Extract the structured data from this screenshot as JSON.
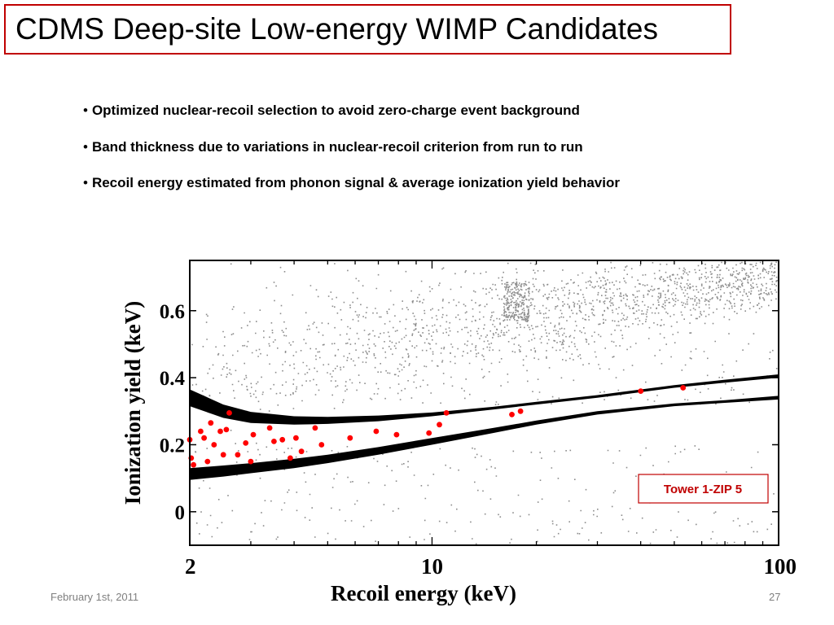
{
  "slide": {
    "title": "CDMS Deep-site Low-energy WIMP Candidates",
    "bullets": [
      "Optimized nuclear-recoil selection to avoid zero-charge event background",
      "Band thickness due to variations in nuclear-recoil criterion from run to run",
      "Recoil energy estimated from phonon signal & average ionization yield behavior"
    ],
    "footer_date": "February 1st, 2011",
    "page_number": "27"
  },
  "chart_data": {
    "type": "scatter",
    "title": "",
    "xlabel": "Recoil energy (keV)",
    "ylabel": "Ionization yield (keV)",
    "x_scale": "log",
    "xlim": [
      2,
      100
    ],
    "ylim": [
      -0.1,
      0.75
    ],
    "x_ticks": [
      2,
      10,
      100
    ],
    "x_tick_labels": [
      "2",
      "10",
      "100"
    ],
    "y_ticks": [
      0,
      0.2,
      0.4,
      0.6
    ],
    "y_tick_labels": [
      "0",
      "0.2",
      "0.4",
      "0.6"
    ],
    "annotation": "Tower 1-ZIP 5",
    "colors": {
      "candidates": "#ff0000",
      "background": "#8c8c8c",
      "bands": "#000000",
      "annotation": "#c00000"
    },
    "candidates": {
      "x": [
        2.0,
        2.02,
        2.05,
        2.15,
        2.2,
        2.25,
        2.3,
        2.35,
        2.45,
        2.5,
        2.55,
        2.6,
        2.75,
        2.9,
        3.0,
        3.05,
        3.4,
        3.5,
        3.7,
        3.9,
        4.05,
        4.2,
        4.6,
        4.8,
        5.8,
        6.9,
        7.9,
        9.8,
        10.5,
        11.0,
        17.0,
        18.0,
        40.0,
        53.0
      ],
      "y": [
        0.215,
        0.16,
        0.14,
        0.24,
        0.22,
        0.15,
        0.265,
        0.2,
        0.24,
        0.17,
        0.245,
        0.295,
        0.17,
        0.205,
        0.15,
        0.23,
        0.25,
        0.21,
        0.215,
        0.16,
        0.22,
        0.18,
        0.25,
        0.2,
        0.22,
        0.24,
        0.23,
        0.235,
        0.26,
        0.295,
        0.29,
        0.3,
        0.36,
        0.37
      ]
    },
    "bands": [
      {
        "x": [
          2,
          2.5,
          3,
          4,
          5,
          7,
          10,
          15,
          20,
          30,
          50,
          70,
          100
        ],
        "y_low": [
          0.315,
          0.28,
          0.265,
          0.26,
          0.262,
          0.27,
          0.285,
          0.305,
          0.32,
          0.34,
          0.37,
          0.385,
          0.4
        ],
        "y_high": [
          0.365,
          0.32,
          0.298,
          0.285,
          0.283,
          0.287,
          0.296,
          0.313,
          0.328,
          0.348,
          0.378,
          0.394,
          0.41
        ]
      },
      {
        "x": [
          2,
          2.5,
          3,
          4,
          5,
          7,
          10,
          15,
          20,
          30,
          50,
          70,
          100
        ],
        "y_low": [
          0.095,
          0.105,
          0.115,
          0.13,
          0.145,
          0.17,
          0.2,
          0.235,
          0.26,
          0.29,
          0.315,
          0.325,
          0.335
        ],
        "y_high": [
          0.13,
          0.138,
          0.145,
          0.158,
          0.17,
          0.193,
          0.22,
          0.25,
          0.272,
          0.3,
          0.323,
          0.333,
          0.346
        ]
      }
    ]
  }
}
